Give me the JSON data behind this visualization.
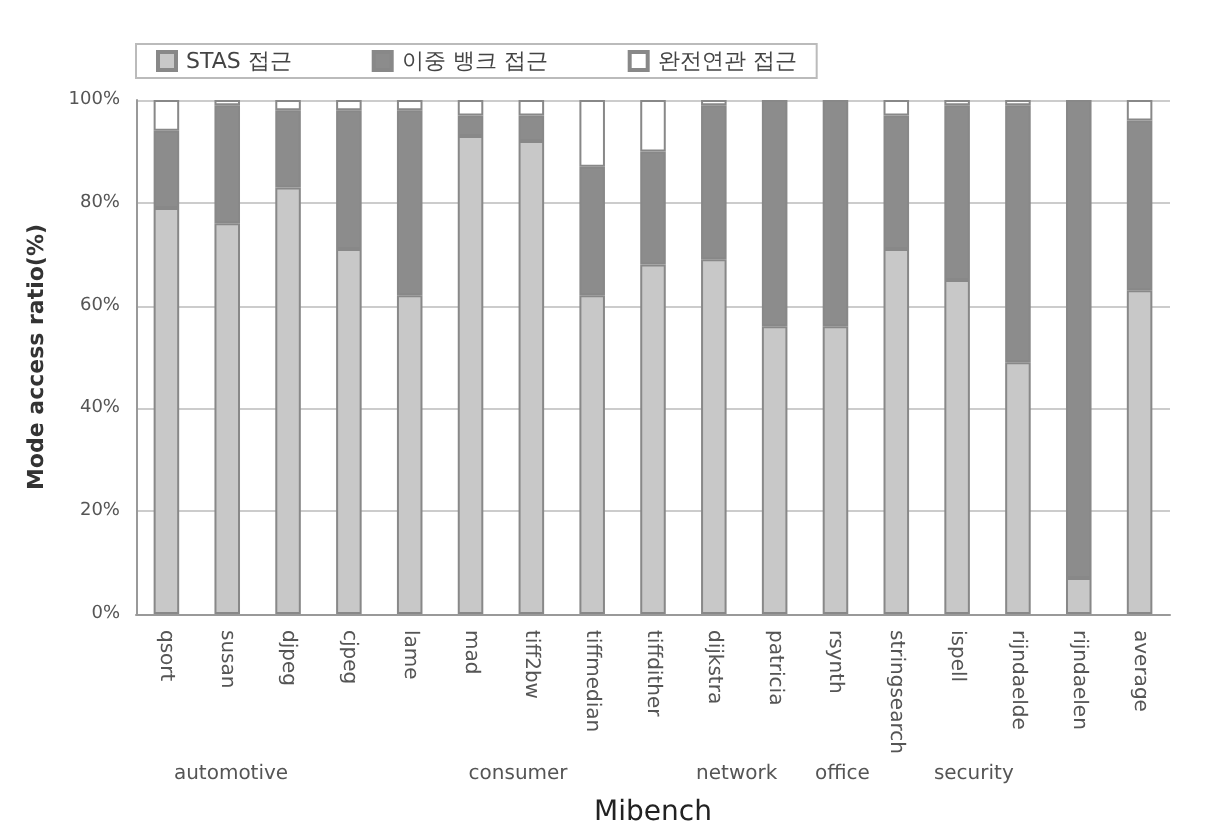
{
  "chart_data": {
    "type": "bar",
    "stacked": true,
    "xlabel": "Mibench",
    "ylabel": "Mode access ratio(%)",
    "categories": [
      "qsort",
      "susan",
      "djpeg",
      "cjpeg",
      "lame",
      "mad",
      "tiff2bw",
      "tiffmedian",
      "tiffdither",
      "dijkstra",
      "patricia",
      "rsynth",
      "stringsearch",
      "ispell",
      "rijndaelde",
      "rijndaelen",
      "average"
    ],
    "series": [
      {
        "name": "STAS 접근",
        "color": "#c8c8c8",
        "values": [
          79,
          76,
          83,
          71,
          62,
          93,
          92,
          62,
          68,
          69,
          56,
          56,
          71,
          65,
          49,
          7,
          63
        ]
      },
      {
        "name": "이중 뱅크 접근",
        "color": "#8c8c8c",
        "values": [
          15,
          23,
          15,
          27,
          36,
          4,
          5,
          25,
          22,
          30,
          44,
          44,
          26,
          34,
          50,
          93,
          33
        ]
      },
      {
        "name": "완전연관 접근",
        "color": "#ffffff",
        "values": [
          6,
          1,
          2,
          2,
          2,
          3,
          3,
          13,
          10,
          1,
          0,
          0,
          3,
          1,
          1,
          0,
          4
        ]
      }
    ],
    "ylim": [
      0,
      100
    ],
    "yticks": [
      {
        "value": 0,
        "label": "0%"
      },
      {
        "value": 20,
        "label": "20%"
      },
      {
        "value": 40,
        "label": "40%"
      },
      {
        "value": 60,
        "label": "60%"
      },
      {
        "value": 80,
        "label": "80%"
      },
      {
        "value": 100,
        "label": "100%"
      }
    ],
    "grid": "y",
    "legend": "top left",
    "annotations": [
      "automotive",
      "consumer",
      "network",
      "office",
      "security"
    ]
  }
}
